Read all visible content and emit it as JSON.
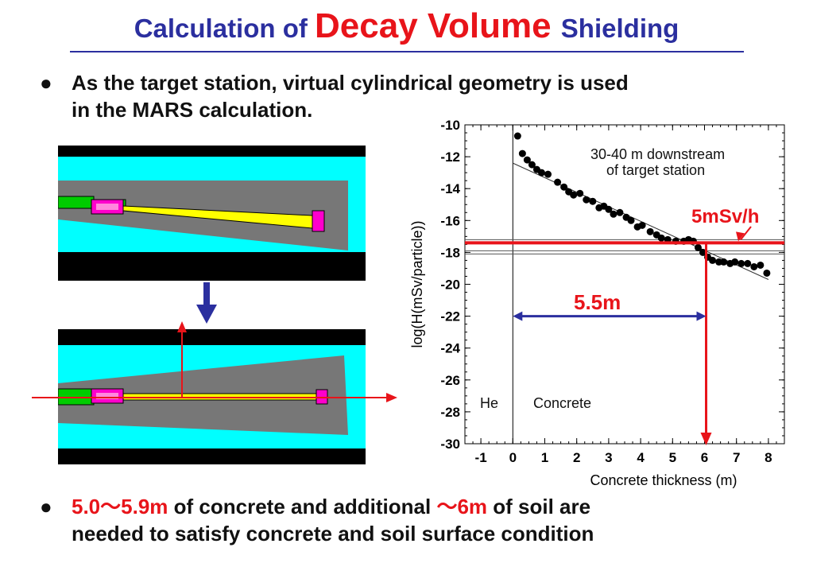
{
  "title": {
    "part1": "Calculation of ",
    "part2": "Decay Volume ",
    "part3": "Shielding"
  },
  "bullets": {
    "first": {
      "marker": "●",
      "line1": "As the target station, virtual cylindrical geometry is used",
      "line2": "in the MARS calculation."
    },
    "second": {
      "marker": "●",
      "range": "5.0～5.9m",
      "mid": " of concrete and additional ",
      "soil": "～6m",
      "end": " of soil are",
      "line2": "needed to satisfy concrete and soil surface condition"
    }
  },
  "chart_annotations": {
    "location_line1": "30-40 m downstream",
    "location_line2": "of target station",
    "dose_limit": "5mSv/h",
    "thickness_result": "5.5m",
    "region_he": "He",
    "region_concrete": "Concrete"
  },
  "colors": {
    "title_blue": "#2b2f9f",
    "accent_red": "#e8141a",
    "cyan": "#00ffff",
    "gray": "#777777",
    "yellow": "#ffff00",
    "magenta": "#ff00cc",
    "green": "#00cc00"
  },
  "chart_data": {
    "type": "scatter",
    "title": "",
    "xlabel": "Concrete thickness (m)",
    "ylabel": "log(H(mSv/particle))",
    "xlim": [
      -1.5,
      8.5
    ],
    "ylim": [
      -30,
      -10
    ],
    "xticks": [
      -1,
      0,
      1,
      2,
      3,
      4,
      5,
      6,
      7,
      8
    ],
    "yticks": [
      -10,
      -12,
      -14,
      -16,
      -18,
      -20,
      -22,
      -24,
      -26,
      -28,
      -30
    ],
    "grid": false,
    "series": [
      {
        "values": [
          [
            0.15,
            -10.7
          ],
          [
            0.3,
            -11.8
          ],
          [
            0.45,
            -12.2
          ],
          [
            0.6,
            -12.5
          ],
          [
            0.75,
            -12.8
          ],
          [
            0.9,
            -13.0
          ],
          [
            1.1,
            -13.1
          ],
          [
            1.4,
            -13.6
          ],
          [
            1.6,
            -13.9
          ],
          [
            1.75,
            -14.2
          ],
          [
            1.9,
            -14.4
          ],
          [
            2.1,
            -14.3
          ],
          [
            2.3,
            -14.7
          ],
          [
            2.5,
            -14.8
          ],
          [
            2.7,
            -15.2
          ],
          [
            2.85,
            -15.1
          ],
          [
            3.0,
            -15.3
          ],
          [
            3.15,
            -15.6
          ],
          [
            3.35,
            -15.5
          ],
          [
            3.55,
            -15.8
          ],
          [
            3.7,
            -16.0
          ],
          [
            3.9,
            -16.4
          ],
          [
            4.05,
            -16.3
          ],
          [
            4.3,
            -16.7
          ],
          [
            4.5,
            -16.9
          ],
          [
            4.65,
            -17.1
          ],
          [
            4.85,
            -17.2
          ],
          [
            5.1,
            -17.3
          ],
          [
            5.35,
            -17.3
          ],
          [
            5.5,
            -17.2
          ],
          [
            5.65,
            -17.3
          ],
          [
            5.8,
            -17.7
          ],
          [
            5.95,
            -18.0
          ],
          [
            6.1,
            -18.3
          ],
          [
            6.25,
            -18.5
          ],
          [
            6.45,
            -18.6
          ],
          [
            6.6,
            -18.6
          ],
          [
            6.8,
            -18.7
          ],
          [
            6.95,
            -18.6
          ],
          [
            7.15,
            -18.7
          ],
          [
            7.35,
            -18.7
          ],
          [
            7.55,
            -18.9
          ],
          [
            7.75,
            -18.8
          ],
          [
            7.95,
            -19.3
          ]
        ]
      }
    ],
    "fit_line": [
      [
        0,
        -12.4
      ],
      [
        8,
        -19.7
      ]
    ],
    "reference_lines_y": [
      -17.2,
      -17.4,
      -17.9,
      -18.1
    ],
    "dose_limit_y": -17.4,
    "thickness_marker_x": 5.5,
    "boundary_x": 0
  }
}
